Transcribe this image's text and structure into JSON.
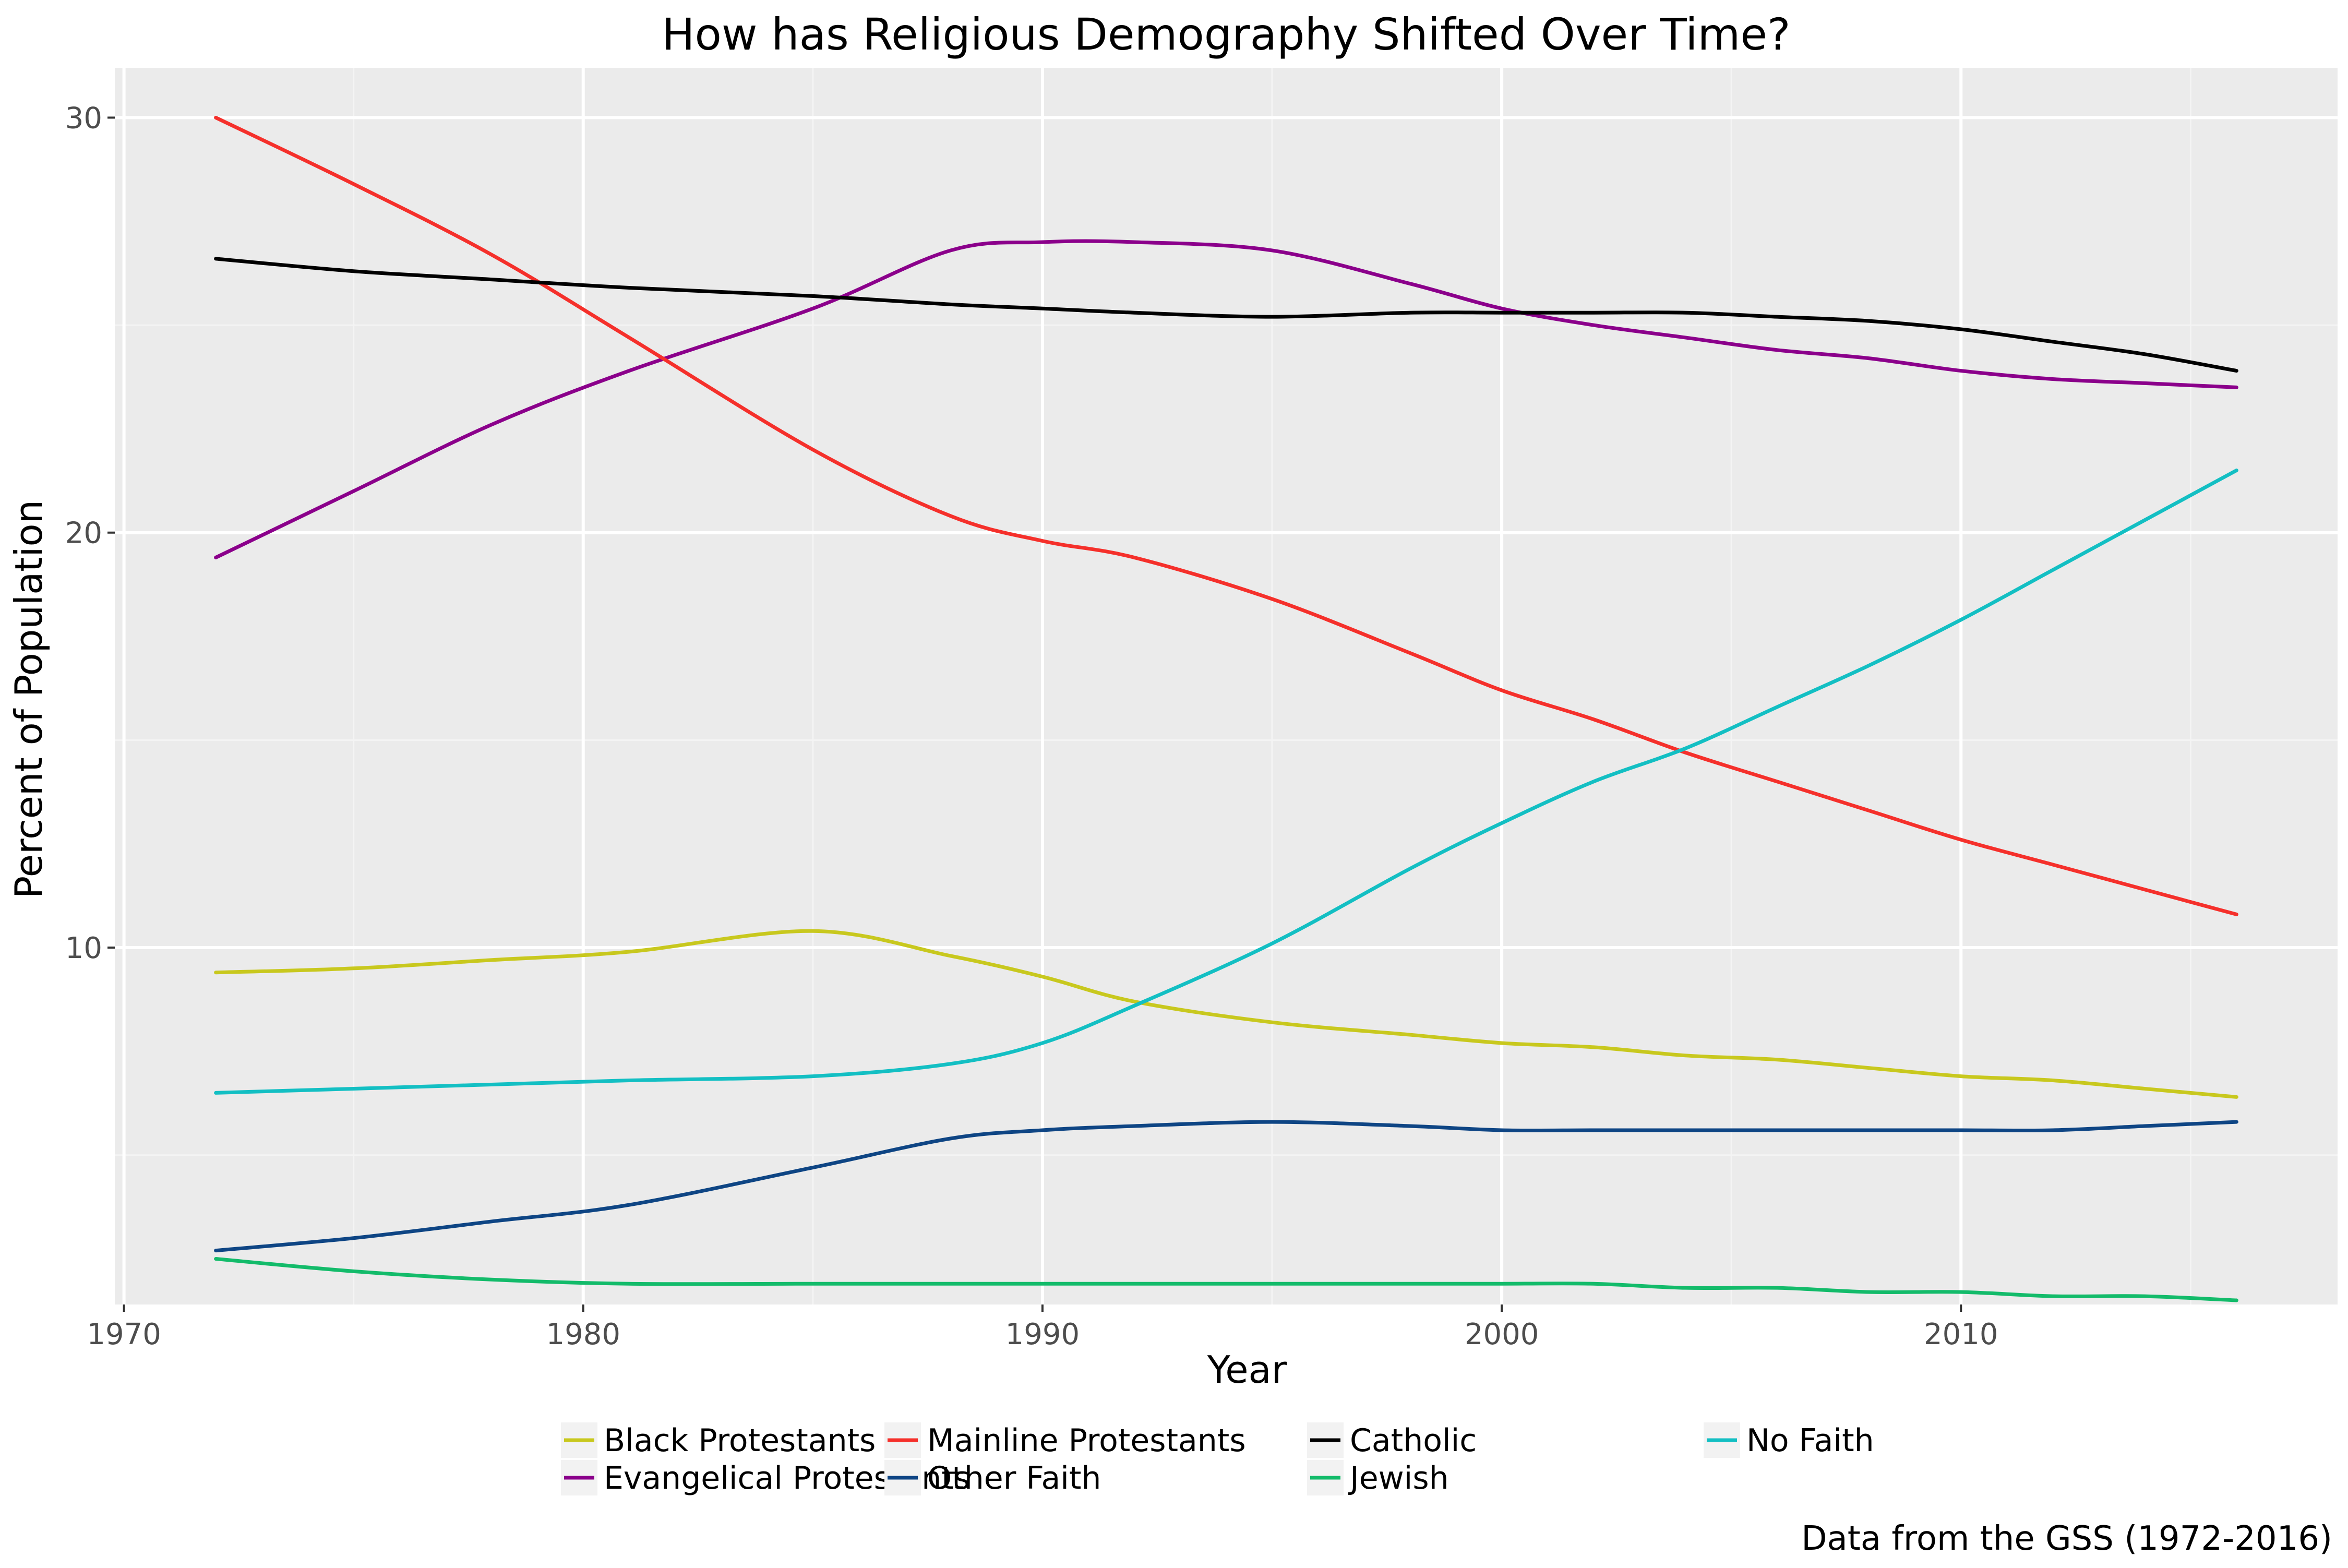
{
  "chart_data": {
    "type": "line",
    "title": "How has Religious Demography Shifted Over Time?",
    "xlabel": "Year",
    "ylabel": "Percent of Population",
    "caption": "Data from the GSS (1972-2016)",
    "xlim": [
      1969.8,
      2018.2
    ],
    "ylim": [
      1.4,
      31.2
    ],
    "x_ticks": [
      1970,
      1980,
      1990,
      2000,
      2010
    ],
    "y_ticks": [
      10,
      20,
      30
    ],
    "grid": true,
    "background": "#ebebeb",
    "legend_position": "bottom",
    "x": [
      1972,
      1975,
      1978,
      1981,
      1985,
      1988,
      1990,
      1992,
      1995,
      1998,
      2000,
      2002,
      2004,
      2006,
      2008,
      2010,
      2012,
      2014,
      2016
    ],
    "series": [
      {
        "name": "Black Protestants",
        "color": "#c8c81e",
        "values": [
          9.4,
          9.5,
          9.7,
          9.9,
          10.4,
          9.8,
          9.3,
          8.7,
          8.2,
          7.9,
          7.7,
          7.6,
          7.4,
          7.3,
          7.1,
          6.9,
          6.8,
          6.6,
          6.4
        ]
      },
      {
        "name": "Evangelical Protestants",
        "color": "#8b008b",
        "values": [
          19.4,
          21.0,
          22.6,
          23.9,
          25.4,
          26.8,
          27.0,
          27.0,
          26.8,
          26.0,
          25.4,
          25.0,
          24.7,
          24.4,
          24.2,
          23.9,
          23.7,
          23.6,
          23.5
        ]
      },
      {
        "name": "Mainline Protestants",
        "color": "#f5302b",
        "values": [
          30.0,
          28.4,
          26.7,
          24.7,
          22.0,
          20.4,
          19.8,
          19.4,
          18.4,
          17.1,
          16.2,
          15.5,
          14.7,
          14.0,
          13.3,
          12.6,
          12.0,
          11.4,
          10.8
        ]
      },
      {
        "name": "Other Faith",
        "color": "#0e4584",
        "values": [
          2.7,
          3.0,
          3.4,
          3.8,
          4.7,
          5.4,
          5.6,
          5.7,
          5.8,
          5.7,
          5.6,
          5.6,
          5.6,
          5.6,
          5.6,
          5.6,
          5.6,
          5.7,
          5.8
        ]
      },
      {
        "name": "Catholic",
        "color": "#000000",
        "values": [
          26.6,
          26.3,
          26.1,
          25.9,
          25.7,
          25.5,
          25.4,
          25.3,
          25.2,
          25.3,
          25.3,
          25.3,
          25.3,
          25.2,
          25.1,
          24.9,
          24.6,
          24.3,
          23.9
        ]
      },
      {
        "name": "Jewish",
        "color": "#13bb6a",
        "values": [
          2.5,
          2.2,
          2.0,
          1.9,
          1.9,
          1.9,
          1.9,
          1.9,
          1.9,
          1.9,
          1.9,
          1.9,
          1.8,
          1.8,
          1.7,
          1.7,
          1.6,
          1.6,
          1.5
        ]
      },
      {
        "name": "No Faith",
        "color": "#13bfc3",
        "values": [
          6.5,
          6.6,
          6.7,
          6.8,
          6.9,
          7.2,
          7.7,
          8.6,
          10.1,
          11.9,
          13.0,
          14.0,
          14.8,
          15.8,
          16.8,
          17.9,
          19.1,
          20.3,
          21.5
        ]
      }
    ]
  }
}
